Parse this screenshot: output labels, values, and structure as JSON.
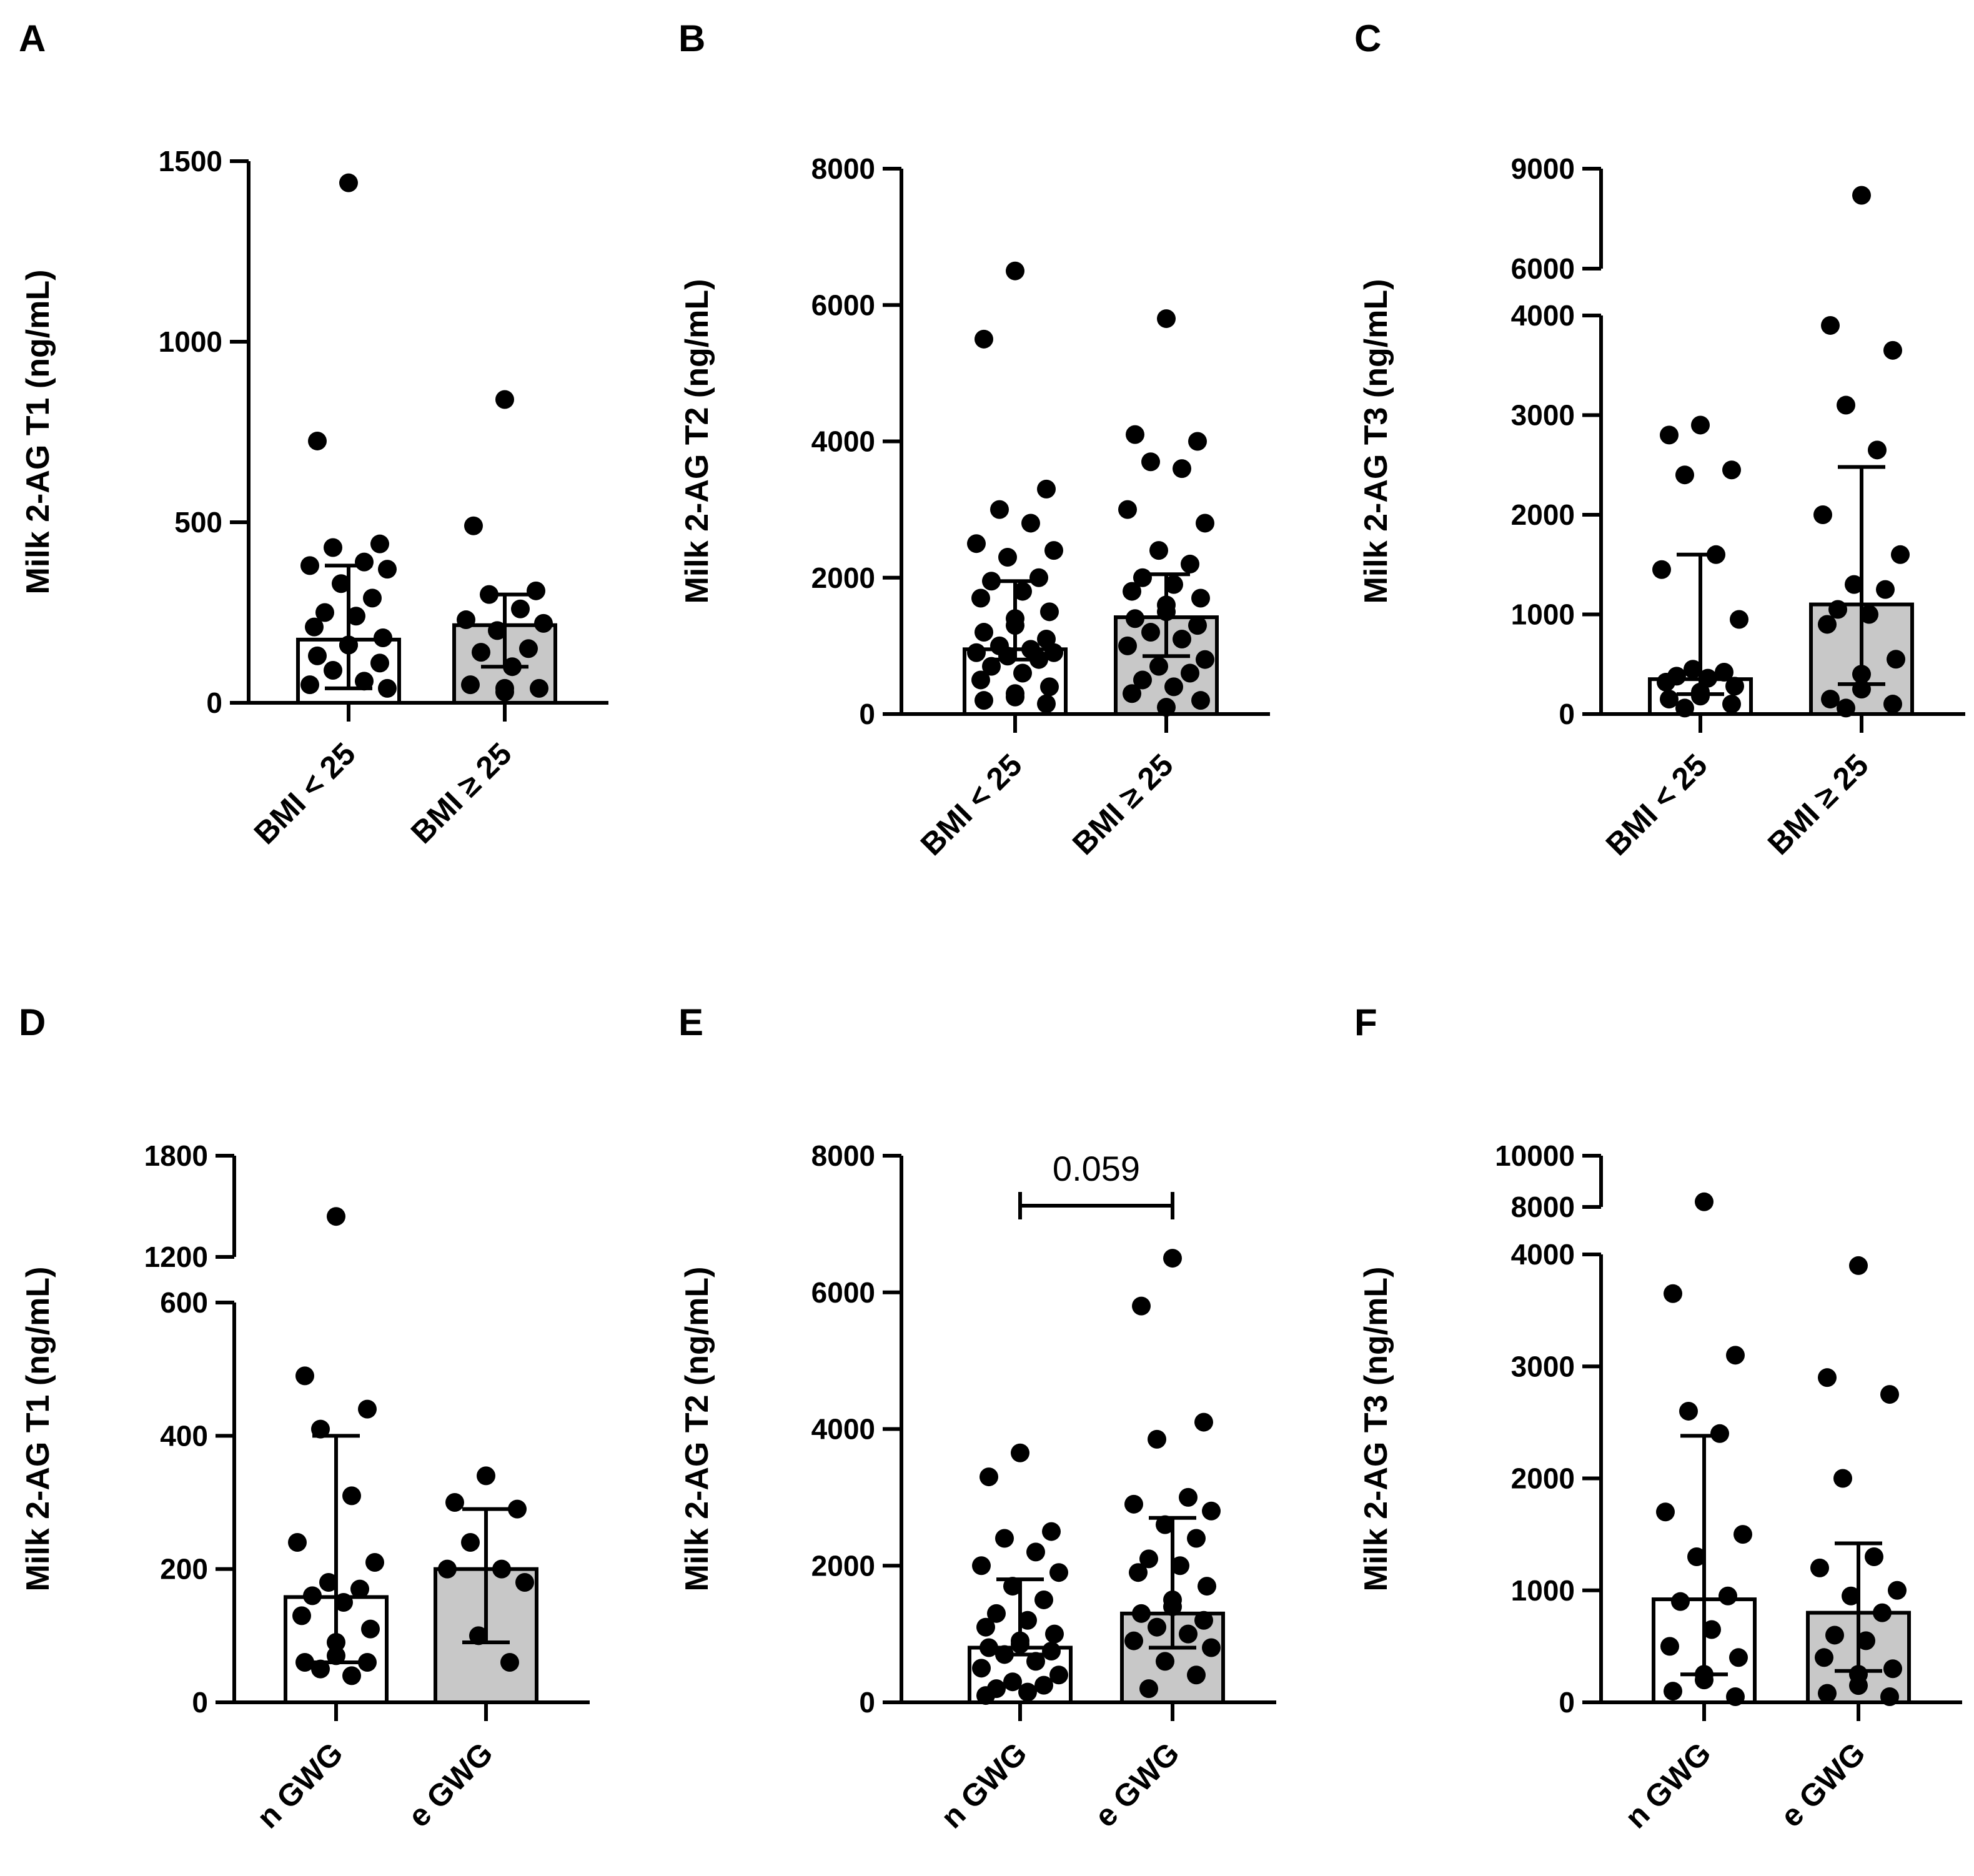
{
  "chart_data": [
    {
      "panel": "A",
      "type": "bar",
      "title": "",
      "xlabel": "",
      "ylabel": "Milk 2-AG T1 (ng/mL)",
      "ylim": [
        0,
        1500
      ],
      "yticks": [
        0,
        500,
        1000,
        1500
      ],
      "yticklabels": [
        "0",
        "500",
        "1000",
        "1500"
      ],
      "categories": [
        "BMI < 25",
        "BMI ≥ 25"
      ],
      "values": [
        175,
        215
      ],
      "error_low": [
        40,
        100
      ],
      "error_high": [
        380,
        300
      ],
      "fills": [
        "#ffffff",
        "#c8c8c8"
      ],
      "points": [
        [
          1440,
          725,
          440,
          430,
          390,
          380,
          370,
          330,
          290,
          250,
          240,
          210,
          180,
          160,
          160,
          130,
          110,
          90,
          60,
          50,
          40
        ],
        [
          840,
          490,
          310,
          300,
          260,
          230,
          220,
          200,
          150,
          140,
          100,
          50,
          40,
          40,
          30
        ]
      ]
    },
    {
      "panel": "B",
      "type": "bar",
      "title": "",
      "xlabel": "",
      "ylabel": "Milk 2-AG T2 (ng/mL)",
      "ylim": [
        0,
        8000
      ],
      "yticks": [
        0,
        2000,
        4000,
        6000,
        8000
      ],
      "yticklabels": [
        "0",
        "2000",
        "4000",
        "6000",
        "8000"
      ],
      "categories": [
        "BMI < 25",
        "BMI ≥ 25"
      ],
      "values": [
        950,
        1420
      ],
      "error_low": [
        800,
        850
      ],
      "error_high": [
        1950,
        2050
      ],
      "fills": [
        "#ffffff",
        "#c8c8c8"
      ],
      "points": [
        [
          6500,
          5500,
          3300,
          3000,
          2800,
          2500,
          2400,
          2300,
          2000,
          1950,
          1800,
          1700,
          1500,
          1400,
          1300,
          1200,
          1100,
          1000,
          950,
          900,
          900,
          850,
          800,
          700,
          600,
          500,
          400,
          300,
          250,
          200,
          150
        ],
        [
          5800,
          4100,
          4000,
          3700,
          3600,
          3000,
          2800,
          2400,
          2200,
          2000,
          1900,
          1800,
          1700,
          1600,
          1500,
          1400,
          1300,
          1200,
          1100,
          1000,
          800,
          700,
          600,
          500,
          400,
          300,
          200,
          100
        ]
      ]
    },
    {
      "panel": "C",
      "type": "bar",
      "title": "",
      "xlabel": "",
      "ylabel": "Milk 2-AG T3 (ng/mL)",
      "ylim": [
        0,
        9000
      ],
      "axis_break": [
        4000,
        6000
      ],
      "yticks": [
        0,
        1000,
        2000,
        3000,
        4000,
        6000,
        9000
      ],
      "yticklabels": [
        "0",
        "1000",
        "2000",
        "3000",
        "4000",
        "6000",
        "9000"
      ],
      "categories": [
        "BMI < 25",
        "BMI ≥ 25"
      ],
      "values": [
        350,
        1100
      ],
      "error_low": [
        200,
        300
      ],
      "error_high": [
        1600,
        2480
      ],
      "fills": [
        "#ffffff",
        "#c8c8c8"
      ],
      "points": [
        [
          2900,
          2800,
          2450,
          2400,
          1600,
          1450,
          950,
          450,
          420,
          380,
          360,
          320,
          280,
          220,
          180,
          150,
          100,
          60
        ],
        [
          8200,
          3900,
          3650,
          3100,
          2650,
          2000,
          1600,
          1300,
          1250,
          1050,
          1000,
          900,
          550,
          400,
          250,
          150,
          100,
          60
        ]
      ]
    },
    {
      "panel": "D",
      "type": "bar",
      "title": "",
      "xlabel": "",
      "ylabel": "Milk 2-AG T1 (ng/mL)",
      "ylim": [
        0,
        1800
      ],
      "axis_break": [
        600,
        1200
      ],
      "yticks": [
        0,
        200,
        400,
        600,
        1200,
        1800
      ],
      "yticklabels": [
        "0",
        "200",
        "400",
        "600",
        "1200",
        "1800"
      ],
      "categories": [
        "n GWG",
        "e GWG"
      ],
      "values": [
        158,
        200
      ],
      "error_low": [
        60,
        90
      ],
      "error_high": [
        400,
        290
      ],
      "fills": [
        "#ffffff",
        "#c8c8c8"
      ],
      "points": [
        [
          1440,
          490,
          440,
          410,
          310,
          240,
          210,
          180,
          170,
          160,
          150,
          130,
          110,
          90,
          70,
          60,
          60,
          50,
          40
        ],
        [
          340,
          300,
          290,
          240,
          200,
          200,
          180,
          100,
          60
        ]
      ]
    },
    {
      "panel": "E",
      "type": "bar",
      "title": "",
      "xlabel": "",
      "ylabel": "Milk 2-AG T2 (ng/mL)",
      "ylim": [
        0,
        8000
      ],
      "yticks": [
        0,
        2000,
        4000,
        6000,
        8000
      ],
      "yticklabels": [
        "0",
        "2000",
        "4000",
        "6000",
        "8000"
      ],
      "categories": [
        "n GWG",
        "e GWG"
      ],
      "values": [
        800,
        1300
      ],
      "error_low": [
        700,
        800
      ],
      "error_high": [
        1800,
        2700
      ],
      "fills": [
        "#ffffff",
        "#c8c8c8"
      ],
      "points": [
        [
          3650,
          3300,
          2500,
          2400,
          2200,
          2000,
          1900,
          1700,
          1500,
          1300,
          1200,
          1100,
          1000,
          900,
          850,
          800,
          750,
          700,
          600,
          500,
          400,
          300,
          250,
          200,
          150,
          100
        ],
        [
          6500,
          5800,
          4100,
          3850,
          3000,
          2900,
          2800,
          2600,
          2400,
          2100,
          2000,
          1900,
          1700,
          1500,
          1400,
          1300,
          1200,
          1100,
          1000,
          900,
          800,
          600,
          400,
          200
        ]
      ],
      "annotation": {
        "text": "0.059",
        "between": [
          0,
          1
        ]
      }
    },
    {
      "panel": "F",
      "type": "bar",
      "title": "",
      "xlabel": "",
      "ylabel": "Milk 2-AG T3 (ng/mL)",
      "ylim": [
        0,
        10000
      ],
      "axis_break": [
        4000,
        8000
      ],
      "yticks": [
        0,
        1000,
        2000,
        3000,
        4000,
        8000,
        10000
      ],
      "yticklabels": [
        "0",
        "1000",
        "2000",
        "3000",
        "4000",
        "8000",
        "10000"
      ],
      "categories": [
        "n GWG",
        "e GWG"
      ],
      "values": [
        920,
        800
      ],
      "error_low": [
        250,
        280
      ],
      "error_high": [
        2380,
        1420
      ],
      "fills": [
        "#ffffff",
        "#c8c8c8"
      ],
      "points": [
        [
          8200,
          3650,
          3100,
          2600,
          2400,
          1700,
          1500,
          1300,
          950,
          900,
          650,
          500,
          400,
          250,
          200,
          100,
          50
        ],
        [
          3900,
          2900,
          2750,
          2000,
          1300,
          1200,
          1000,
          950,
          800,
          600,
          550,
          400,
          300,
          250,
          150,
          80,
          50
        ]
      ]
    }
  ]
}
